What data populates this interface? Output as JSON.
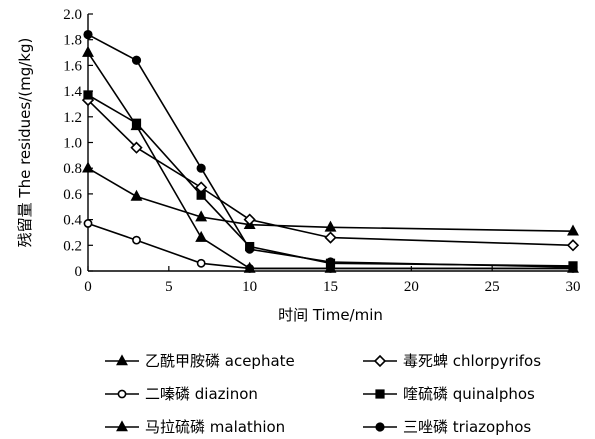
{
  "chart_data": {
    "type": "line",
    "xlabel": "时间 Time/min",
    "ylabel": "残留量 The residues/(mg/kg)",
    "xlim": [
      0,
      30
    ],
    "ylim": [
      0,
      2.0
    ],
    "xticks": [
      "0",
      "5",
      "10",
      "15",
      "20",
      "25",
      "30"
    ],
    "yticks": [
      "0",
      "0.2",
      "0.4",
      "0.6",
      "0.8",
      "1.0",
      "1.2",
      "1.4",
      "1.6",
      "1.8",
      "2.0"
    ],
    "grid": false,
    "legend_position": "bottom",
    "series": [
      {
        "name": "乙酰甲胺磷 acephate",
        "marker": "triangle-filled",
        "x": [
          0,
          3,
          7,
          10,
          15,
          30
        ],
        "y": [
          0.8,
          0.58,
          0.42,
          0.36,
          0.34,
          0.31
        ]
      },
      {
        "name": "二嗪磷 diazinon",
        "marker": "circle-open",
        "x": [
          0,
          3,
          7,
          10,
          15,
          30
        ],
        "y": [
          0.37,
          0.24,
          0.06,
          0.02,
          0.02,
          0.02
        ]
      },
      {
        "name": "马拉硫磷 malathion",
        "marker": "triangle-filled",
        "x": [
          0,
          3,
          7,
          10,
          15,
          30
        ],
        "y": [
          1.7,
          1.13,
          0.26,
          0.02,
          0.02,
          0.02
        ]
      },
      {
        "name": "毒死蜱 chlorpyrifos",
        "marker": "diamond-open",
        "x": [
          0,
          3,
          7,
          10,
          15,
          30
        ],
        "y": [
          1.33,
          0.96,
          0.65,
          0.4,
          0.26,
          0.2
        ]
      },
      {
        "name": "喹硫磷 quinalphos",
        "marker": "square-filled",
        "x": [
          0,
          3,
          7,
          10,
          15,
          30
        ],
        "y": [
          1.37,
          1.15,
          0.59,
          0.19,
          0.06,
          0.04
        ]
      },
      {
        "name": "三唑磷 triazophos",
        "marker": "circle-filled",
        "x": [
          0,
          3,
          7,
          10,
          15,
          30
        ],
        "y": [
          1.84,
          1.64,
          0.8,
          0.17,
          0.07,
          0.03
        ]
      }
    ]
  }
}
